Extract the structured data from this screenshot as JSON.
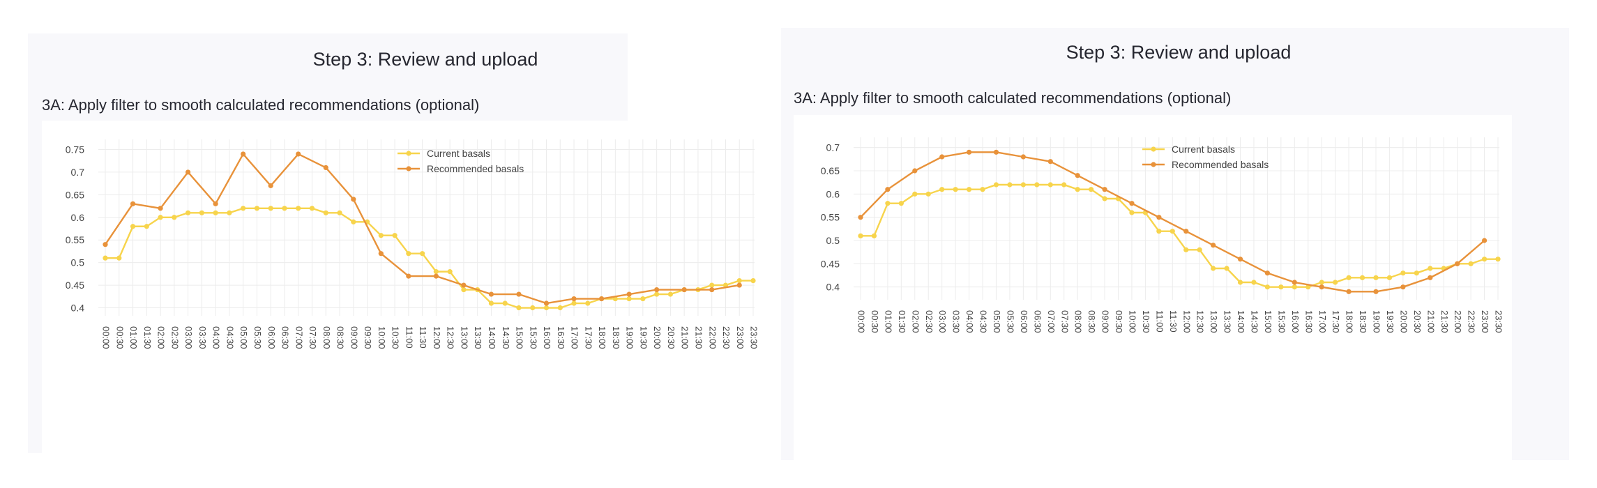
{
  "left": {
    "step_title": "Step 3: Review and upload",
    "subtitle": "3A: Apply filter to smooth calculated recommendations (optional)"
  },
  "right": {
    "step_title": "Step 3: Review and upload",
    "subtitle": "3A: Apply filter to smooth calculated recommendations (optional)"
  },
  "colors": {
    "current": "#f7d44c",
    "recommended": "#e8923a",
    "grid": "#ececec",
    "text": "#444444"
  },
  "chart_data": [
    {
      "type": "line",
      "x": [
        "00:00",
        "00:30",
        "01:00",
        "01:30",
        "02:00",
        "02:30",
        "03:00",
        "03:30",
        "04:00",
        "04:30",
        "05:00",
        "05:30",
        "06:00",
        "06:30",
        "07:00",
        "07:30",
        "08:00",
        "08:30",
        "09:00",
        "09:30",
        "10:00",
        "10:30",
        "11:00",
        "11:30",
        "12:00",
        "12:30",
        "13:00",
        "13:30",
        "14:00",
        "14:30",
        "15:00",
        "15:30",
        "16:00",
        "16:30",
        "17:00",
        "17:30",
        "18:00",
        "18:30",
        "19:00",
        "19:30",
        "20:00",
        "20:30",
        "21:00",
        "21:30",
        "22:00",
        "22:30",
        "23:00",
        "23:30"
      ],
      "yticks": [
        0.4,
        0.45,
        0.5,
        0.55,
        0.6,
        0.65,
        0.7,
        0.75
      ],
      "ylim": [
        0.39,
        0.76
      ],
      "legend_position": "top-right",
      "series": [
        {
          "name": "Current basals",
          "values": [
            0.51,
            0.51,
            0.58,
            0.58,
            0.6,
            0.6,
            0.61,
            0.61,
            0.61,
            0.61,
            0.62,
            0.62,
            0.62,
            0.62,
            0.62,
            0.62,
            0.61,
            0.61,
            0.59,
            0.59,
            0.56,
            0.56,
            0.52,
            0.52,
            0.48,
            0.48,
            0.44,
            0.44,
            0.41,
            0.41,
            0.4,
            0.4,
            0.4,
            0.4,
            0.41,
            0.41,
            0.42,
            0.42,
            0.42,
            0.42,
            0.43,
            0.43,
            0.44,
            0.44,
            0.45,
            0.45,
            0.46,
            0.46
          ]
        },
        {
          "name": "Recommended basals",
          "x": [
            "00:00",
            "01:00",
            "02:00",
            "03:00",
            "04:00",
            "05:00",
            "06:00",
            "07:00",
            "08:00",
            "09:00",
            "10:00",
            "11:00",
            "12:00",
            "13:00",
            "14:00",
            "15:00",
            "16:00",
            "17:00",
            "18:00",
            "19:00",
            "20:00",
            "21:00",
            "22:00",
            "23:00"
          ],
          "values": [
            0.54,
            0.63,
            0.62,
            0.7,
            0.63,
            0.74,
            0.67,
            0.74,
            0.71,
            0.64,
            0.52,
            0.47,
            0.47,
            0.45,
            0.43,
            0.43,
            0.41,
            0.42,
            0.42,
            0.43,
            0.44,
            0.44,
            0.44,
            0.45
          ]
        }
      ]
    },
    {
      "type": "line",
      "x": [
        "00:00",
        "00:30",
        "01:00",
        "01:30",
        "02:00",
        "02:30",
        "03:00",
        "03:30",
        "04:00",
        "04:30",
        "05:00",
        "05:30",
        "06:00",
        "06:30",
        "07:00",
        "07:30",
        "08:00",
        "08:30",
        "09:00",
        "09:30",
        "10:00",
        "10:30",
        "11:00",
        "11:30",
        "12:00",
        "12:30",
        "13:00",
        "13:30",
        "14:00",
        "14:30",
        "15:00",
        "15:30",
        "16:00",
        "16:30",
        "17:00",
        "17:30",
        "18:00",
        "18:30",
        "19:00",
        "19:30",
        "20:00",
        "20:30",
        "21:00",
        "21:30",
        "22:00",
        "22:30",
        "23:00",
        "23:30"
      ],
      "yticks": [
        0.4,
        0.45,
        0.5,
        0.55,
        0.6,
        0.65,
        0.7
      ],
      "ylim": [
        0.38,
        0.71
      ],
      "legend_position": "top-right",
      "series": [
        {
          "name": "Current basals",
          "values": [
            0.51,
            0.51,
            0.58,
            0.58,
            0.6,
            0.6,
            0.61,
            0.61,
            0.61,
            0.61,
            0.62,
            0.62,
            0.62,
            0.62,
            0.62,
            0.62,
            0.61,
            0.61,
            0.59,
            0.59,
            0.56,
            0.56,
            0.52,
            0.52,
            0.48,
            0.48,
            0.44,
            0.44,
            0.41,
            0.41,
            0.4,
            0.4,
            0.4,
            0.4,
            0.41,
            0.41,
            0.42,
            0.42,
            0.42,
            0.42,
            0.43,
            0.43,
            0.44,
            0.44,
            0.45,
            0.45,
            0.46,
            0.46
          ]
        },
        {
          "name": "Recommended basals",
          "x": [
            "00:00",
            "01:00",
            "02:00",
            "03:00",
            "04:00",
            "05:00",
            "06:00",
            "07:00",
            "08:00",
            "09:00",
            "10:00",
            "11:00",
            "12:00",
            "13:00",
            "14:00",
            "15:00",
            "16:00",
            "17:00",
            "18:00",
            "19:00",
            "20:00",
            "21:00",
            "22:00",
            "23:00"
          ],
          "values": [
            0.55,
            0.61,
            0.65,
            0.68,
            0.69,
            0.69,
            0.68,
            0.67,
            0.64,
            0.61,
            0.58,
            0.55,
            0.52,
            0.49,
            0.46,
            0.43,
            0.41,
            0.4,
            0.39,
            0.39,
            0.4,
            0.42,
            0.45,
            0.5
          ]
        }
      ]
    }
  ]
}
